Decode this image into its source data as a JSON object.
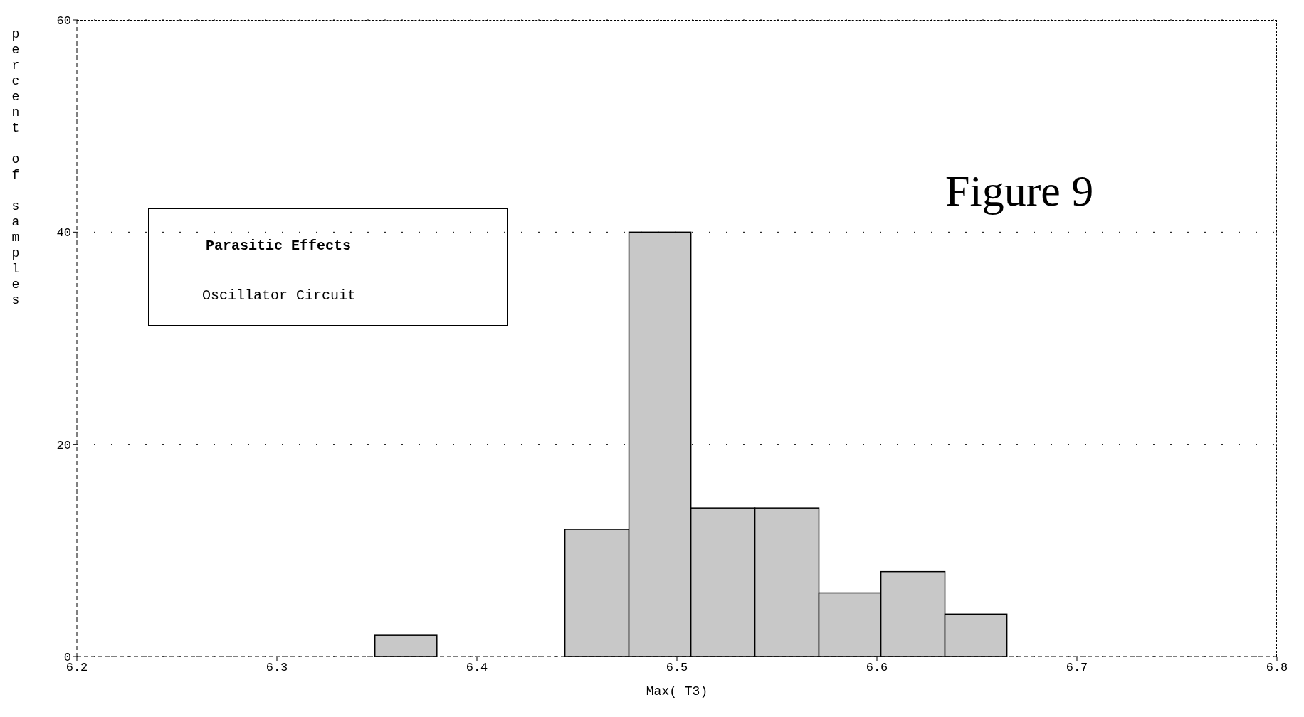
{
  "chart_data": {
    "type": "histogram",
    "title": "Parasitic Effects",
    "subtitle": "Oscillator Circuit",
    "xlabel": "Max( T3)",
    "ylabel": "percent of samples",
    "annotations": [
      "Figure 9"
    ],
    "bins": [
      6.349,
      6.38,
      6.444,
      6.476,
      6.507,
      6.539,
      6.571,
      6.602,
      6.634,
      6.665
    ],
    "values": [
      2,
      0,
      12,
      40,
      14,
      14,
      6,
      8,
      4
    ],
    "color": "#c8c8c8",
    "xlim": [
      6.2,
      6.8
    ],
    "xticks": [
      6.2,
      6.3,
      6.4,
      6.5,
      6.6,
      6.7,
      6.8
    ],
    "ylim": [
      0,
      60
    ],
    "yticks": [
      0,
      20,
      40,
      60
    ],
    "grid": "y"
  }
}
